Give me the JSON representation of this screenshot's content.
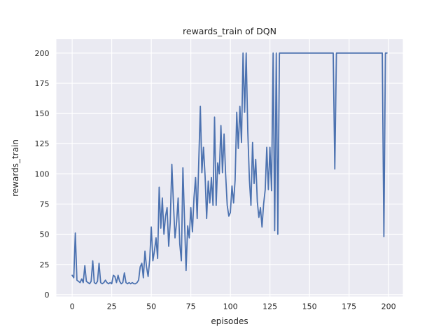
{
  "chart_data": {
    "type": "line",
    "title": "rewards_train of DQN",
    "xlabel": "episodes",
    "ylabel": "rewards_train",
    "x_ticks": [
      0,
      25,
      50,
      75,
      100,
      125,
      150,
      175,
      200
    ],
    "y_ticks": [
      0,
      25,
      50,
      75,
      100,
      125,
      150,
      175,
      200
    ],
    "xlim": [
      -10,
      209
    ],
    "ylim": [
      -1.5,
      211.5
    ],
    "grid": true,
    "legend_position": "none",
    "style": "seaborn-darkgrid",
    "colors": {
      "figure_bg": "#ffffff",
      "plot_bg": "#eaeaf2",
      "grid": "#ffffff",
      "line": "#4c72b0",
      "text": "#262626"
    },
    "x_is_episode_index_starting_at": 0,
    "series": [
      {
        "name": "rewards_train",
        "color": "#4c72b0",
        "values": [
          16,
          14,
          51,
          12,
          11,
          10,
          13,
          10,
          24,
          11,
          10,
          9,
          11,
          28,
          10,
          9,
          11,
          26,
          10,
          9,
          10,
          12,
          10,
          9,
          10,
          9,
          16,
          15,
          10,
          16,
          11,
          9,
          10,
          18,
          10,
          9,
          10,
          9,
          10,
          9,
          9,
          10,
          12,
          23,
          26,
          14,
          36,
          23,
          15,
          29,
          56,
          28,
          36,
          47,
          30,
          89,
          55,
          80,
          50,
          65,
          72,
          40,
          60,
          108,
          75,
          47,
          60,
          80,
          42,
          28,
          105,
          62,
          20,
          57,
          47,
          72,
          52,
          80,
          97,
          63,
          109,
          156,
          101,
          122,
          98,
          63,
          94,
          76,
          97,
          74,
          147,
          74,
          109,
          100,
          140,
          101,
          133,
          100,
          74,
          65,
          68,
          90,
          76,
          95,
          151,
          121,
          156,
          126,
          200,
          151,
          200,
          135,
          95,
          74,
          126,
          92,
          112,
          77,
          64,
          72,
          56,
          75,
          87,
          122,
          87,
          122,
          86,
          200,
          53,
          200,
          50,
          200,
          200,
          200,
          200,
          200,
          200,
          200,
          200,
          200,
          200,
          200,
          200,
          200,
          200,
          200,
          200,
          200,
          200,
          200,
          200,
          200,
          200,
          200,
          200,
          200,
          200,
          200,
          200,
          200,
          200,
          200,
          200,
          200,
          200,
          200,
          104,
          200,
          200,
          200,
          200,
          200,
          200,
          200,
          200,
          200,
          200,
          200,
          200,
          200,
          200,
          200,
          200,
          200,
          200,
          200,
          200,
          200,
          200,
          200,
          200,
          200,
          200,
          200,
          200,
          200,
          200,
          48,
          200,
          200
        ]
      }
    ]
  }
}
